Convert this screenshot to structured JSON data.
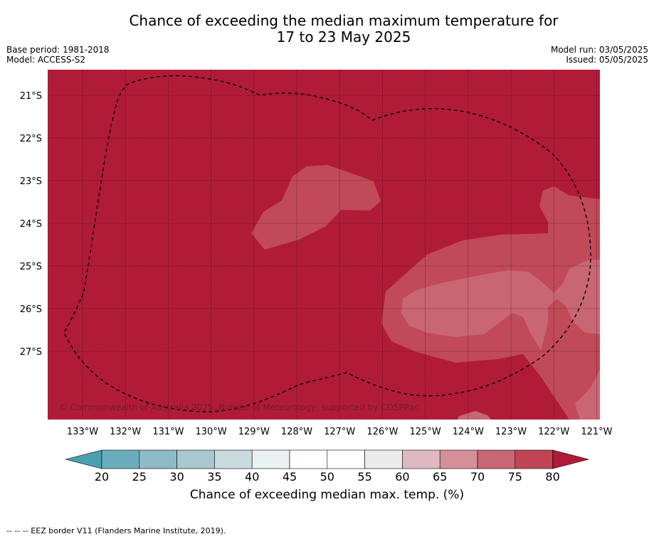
{
  "title_line1": "Chance of exceeding the median maximum temperature for",
  "title_line2": "17 to 23 May 2025",
  "meta_left": [
    "Base period: 1981-2018",
    "Model: ACCESS-S2"
  ],
  "meta_right": [
    "Model run: 03/05/2025",
    "Issued: 05/05/2025"
  ],
  "credit": "© Commonwealth of Australia 2025, Bureau of Meteorology, supported by COSPPac",
  "footer": "-- -- -- EEZ border V11 (Flanders Marine Institute, 2019).",
  "map": {
    "lon_labels": [
      "133°W",
      "132°W",
      "131°W",
      "130°W",
      "129°W",
      "128°W",
      "127°W",
      "126°W",
      "125°W",
      "124°W",
      "123°W",
      "122°W",
      "121°W"
    ],
    "lat_labels": [
      "21°S",
      "22°S",
      "23°S",
      "24°S",
      "25°S",
      "26°S",
      "27°S"
    ],
    "background_color": "#b01c38"
  },
  "colorbar": {
    "title": "Chance of exceeding median max. temp. (%)",
    "ticks": [
      "20",
      "25",
      "30",
      "35",
      "40",
      "45",
      "50",
      "55",
      "60",
      "65",
      "70",
      "75",
      "80"
    ],
    "colors": [
      "#6cadbd",
      "#8ebac6",
      "#a8c8cf",
      "#c9dbdf",
      "#eaf1f3",
      "#ffffff",
      "#ffffff",
      "#ebebeb",
      "#dfb9bf",
      "#d48f99",
      "#c96674",
      "#bf4556"
    ],
    "low_extend_color": "#4aa0b0",
    "high_extend_color": "#b01c38"
  },
  "colors": {
    "band_75_80": "#c04a58",
    "band_70_75": "#c96674",
    "eez_line": "#000000"
  }
}
